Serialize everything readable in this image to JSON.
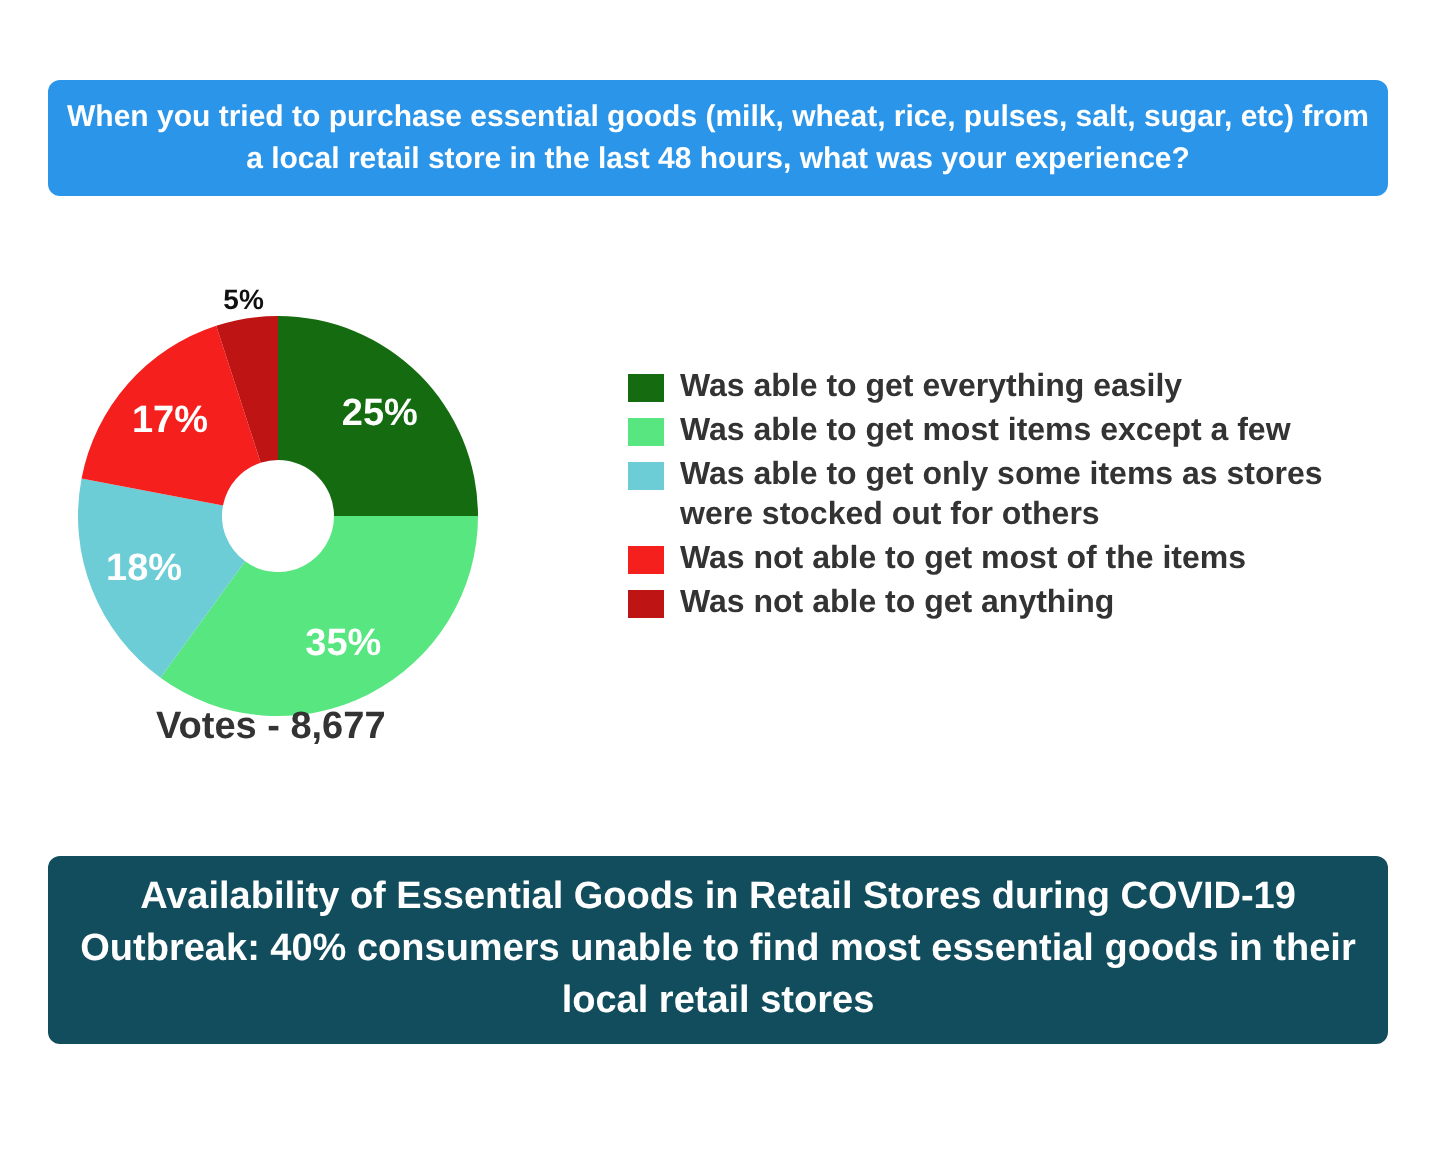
{
  "chart_data": {
    "type": "donut",
    "title": "When you tried to purchase essential goods (milk, wheat, rice, pulses, salt, sugar, etc) from a local retail store in the last 48 hours, what was your experience?",
    "subtitle": "Availability of Essential Goods in Retail Stores during COVID-19 Outbreak: 40% consumers unable to find most essential goods in their local retail stores",
    "categories": [
      "Was able to get everything easily",
      "Was able to get most items except a few",
      "Was able to get only some items as stores were stocked out for others",
      "Was not able to get most of the items",
      "Was not able to get anything"
    ],
    "values": [
      25,
      35,
      18,
      17,
      5
    ],
    "colors": [
      "#156b10",
      "#57e67f",
      "#6ccdd6",
      "#f5201e",
      "#bf1414"
    ],
    "value_labels": [
      "25%",
      "35%",
      "18%",
      "17%",
      "5%"
    ],
    "legend": "right",
    "annotations": [
      "Votes - 8,677"
    ]
  }
}
